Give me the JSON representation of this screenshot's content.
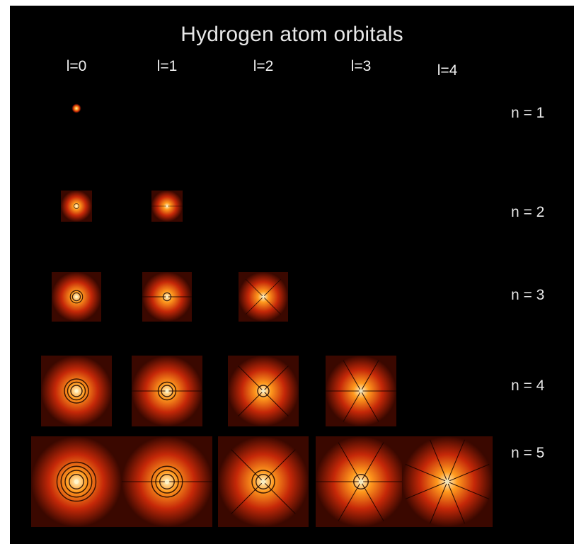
{
  "title": "Hydrogen atom orbitals",
  "columns": [
    {
      "label": "l=0",
      "l": 0
    },
    {
      "label": "l=1",
      "l": 1
    },
    {
      "label": "l=2",
      "l": 2
    },
    {
      "label": "l=3",
      "l": 3
    },
    {
      "label": "l=4",
      "l": 4
    }
  ],
  "rows": [
    {
      "label": "n = 1",
      "n": 1
    },
    {
      "label": "n = 2",
      "n": 2
    },
    {
      "label": "n = 3",
      "n": 3
    },
    {
      "label": "n = 4",
      "n": 4
    },
    {
      "label": "n = 5",
      "n": 5
    }
  ],
  "colors": {
    "background": "#000000",
    "glow_core": "#fff6cc",
    "glow_mid": "#ff9a1e",
    "glow_outer": "#c52808",
    "glow_edge": "#3a0800",
    "node_line": "#1a0300",
    "text": "#e8e8e8"
  }
}
